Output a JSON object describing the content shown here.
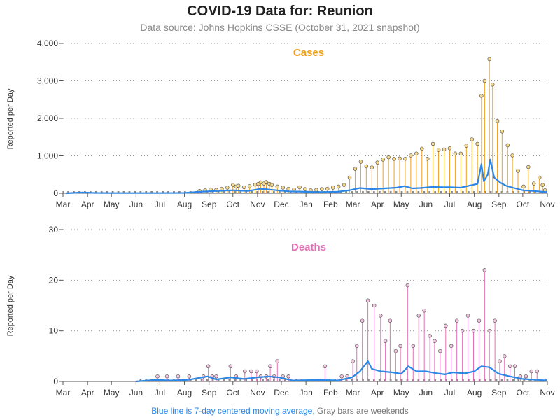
{
  "title": "COVID-19 Data for: Reunion",
  "subtitle": "Data source: Johns Hopkins CSSE (October 31, 2021 snapshot)",
  "footnote": {
    "part1": "Blue line is 7-day centered moving average,",
    "part2": "Gray bars are weekends"
  },
  "colors": {
    "cases": "#f0a020",
    "deaths": "#e46fb6",
    "moving_average": "#2b86e6",
    "weekend": "#888888",
    "grid": "#999999"
  },
  "chart_data": [
    {
      "type": "line",
      "title": "Cases",
      "ylabel": "Reported per Day",
      "ylim": [
        0,
        4000
      ],
      "yticks": [
        0,
        1000,
        2000,
        3000,
        4000
      ],
      "ytick_labels": [
        "0",
        "1,000",
        "2,000",
        "3,000",
        "4,000"
      ],
      "xlim": [
        "2020-03-01",
        "2021-11-01"
      ],
      "xtick_labels": [
        "Mar",
        "Apr",
        "May",
        "Jun",
        "Jul",
        "Aug",
        "Sep",
        "Oct",
        "Nov",
        "Dec",
        "Jan",
        "Feb",
        "Mar",
        "Apr",
        "May",
        "Jun",
        "Jul",
        "Aug",
        "Sep",
        "Oct",
        "Nov"
      ],
      "grid": "horizontal dotted",
      "series": [
        {
          "name": "Reported per Day",
          "style": "needle",
          "points": [
            [
              "2020-08-20",
              60
            ],
            [
              "2020-08-27",
              80
            ],
            [
              "2020-09-03",
              100
            ],
            [
              "2020-09-10",
              90
            ],
            [
              "2020-09-17",
              120
            ],
            [
              "2020-09-24",
              150
            ],
            [
              "2020-10-01",
              220
            ],
            [
              "2020-10-05",
              180
            ],
            [
              "2020-10-08",
              200
            ],
            [
              "2020-10-15",
              160
            ],
            [
              "2020-10-22",
              190
            ],
            [
              "2020-10-29",
              230
            ],
            [
              "2020-11-02",
              250
            ],
            [
              "2020-11-05",
              290
            ],
            [
              "2020-11-09",
              260
            ],
            [
              "2020-11-12",
              300
            ],
            [
              "2020-11-16",
              250
            ],
            [
              "2020-11-19",
              220
            ],
            [
              "2020-11-26",
              180
            ],
            [
              "2020-12-03",
              150
            ],
            [
              "2020-12-10",
              120
            ],
            [
              "2020-12-17",
              100
            ],
            [
              "2020-12-24",
              160
            ],
            [
              "2020-12-31",
              110
            ],
            [
              "2021-01-07",
              80
            ],
            [
              "2021-01-14",
              90
            ],
            [
              "2021-01-21",
              110
            ],
            [
              "2021-01-28",
              120
            ],
            [
              "2021-02-04",
              150
            ],
            [
              "2021-02-11",
              180
            ],
            [
              "2021-02-18",
              220
            ],
            [
              "2021-02-25",
              420
            ],
            [
              "2021-03-04",
              650
            ],
            [
              "2021-03-11",
              840
            ],
            [
              "2021-03-18",
              720
            ],
            [
              "2021-03-25",
              690
            ],
            [
              "2021-04-01",
              820
            ],
            [
              "2021-04-08",
              900
            ],
            [
              "2021-04-15",
              960
            ],
            [
              "2021-04-22",
              920
            ],
            [
              "2021-04-29",
              930
            ],
            [
              "2021-05-06",
              920
            ],
            [
              "2021-05-13",
              1010
            ],
            [
              "2021-05-20",
              1060
            ],
            [
              "2021-05-27",
              1190
            ],
            [
              "2021-06-03",
              920
            ],
            [
              "2021-06-10",
              1320
            ],
            [
              "2021-06-17",
              1160
            ],
            [
              "2021-06-24",
              1170
            ],
            [
              "2021-07-01",
              1200
            ],
            [
              "2021-07-08",
              1060
            ],
            [
              "2021-07-15",
              1060
            ],
            [
              "2021-07-22",
              1270
            ],
            [
              "2021-07-29",
              1440
            ],
            [
              "2021-08-05",
              1320
            ],
            [
              "2021-08-10",
              2600
            ],
            [
              "2021-08-14",
              3000
            ],
            [
              "2021-08-20",
              3580
            ],
            [
              "2021-08-24",
              2900
            ],
            [
              "2021-08-30",
              1930
            ],
            [
              "2021-09-05",
              1650
            ],
            [
              "2021-09-12",
              1280
            ],
            [
              "2021-09-18",
              1010
            ],
            [
              "2021-09-25",
              600
            ],
            [
              "2021-10-02",
              180
            ],
            [
              "2021-10-08",
              700
            ],
            [
              "2021-10-15",
              260
            ],
            [
              "2021-10-22",
              420
            ],
            [
              "2021-10-26",
              220
            ],
            [
              "2021-10-29",
              80
            ]
          ]
        },
        {
          "name": "7-day moving average",
          "style": "line",
          "points": [
            [
              "2020-03-05",
              0
            ],
            [
              "2020-03-25",
              20
            ],
            [
              "2020-04-10",
              10
            ],
            [
              "2020-05-01",
              5
            ],
            [
              "2020-06-01",
              5
            ],
            [
              "2020-07-01",
              5
            ],
            [
              "2020-08-01",
              10
            ],
            [
              "2020-08-20",
              40
            ],
            [
              "2020-09-10",
              60
            ],
            [
              "2020-10-01",
              80
            ],
            [
              "2020-10-20",
              60
            ],
            [
              "2020-11-05",
              120
            ],
            [
              "2020-11-20",
              90
            ],
            [
              "2020-12-10",
              50
            ],
            [
              "2021-01-01",
              40
            ],
            [
              "2021-01-20",
              30
            ],
            [
              "2021-02-10",
              40
            ],
            [
              "2021-02-25",
              80
            ],
            [
              "2021-03-10",
              140
            ],
            [
              "2021-03-25",
              110
            ],
            [
              "2021-04-10",
              130
            ],
            [
              "2021-04-25",
              150
            ],
            [
              "2021-05-05",
              190
            ],
            [
              "2021-05-15",
              130
            ],
            [
              "2021-05-25",
              140
            ],
            [
              "2021-06-10",
              170
            ],
            [
              "2021-06-20",
              160
            ],
            [
              "2021-07-01",
              160
            ],
            [
              "2021-07-15",
              150
            ],
            [
              "2021-07-25",
              200
            ],
            [
              "2021-08-05",
              250
            ],
            [
              "2021-08-10",
              780
            ],
            [
              "2021-08-13",
              320
            ],
            [
              "2021-08-18",
              500
            ],
            [
              "2021-08-21",
              900
            ],
            [
              "2021-08-26",
              420
            ],
            [
              "2021-09-03",
              280
            ],
            [
              "2021-09-10",
              200
            ],
            [
              "2021-09-20",
              140
            ],
            [
              "2021-10-01",
              80
            ],
            [
              "2021-10-15",
              60
            ],
            [
              "2021-10-31",
              30
            ]
          ]
        }
      ]
    },
    {
      "type": "line",
      "title": "Deaths",
      "ylabel": "Reported per Day",
      "ylim": [
        0,
        30
      ],
      "yticks": [
        0,
        10,
        20,
        30
      ],
      "ytick_labels": [
        "0",
        "10",
        "20",
        "30"
      ],
      "xlim": [
        "2020-03-01",
        "2021-11-01"
      ],
      "xtick_labels": [
        "Mar",
        "Apr",
        "May",
        "Jun",
        "Jul",
        "Aug",
        "Sep",
        "Oct",
        "Nov",
        "Dec",
        "Jan",
        "Feb",
        "Mar",
        "Apr",
        "May",
        "Jun",
        "Jul",
        "Aug",
        "Sep",
        "Oct",
        "Nov"
      ],
      "grid": "horizontal dotted",
      "series": [
        {
          "name": "Reported per Day",
          "style": "needle",
          "points": [
            [
              "2020-06-28",
              1
            ],
            [
              "2020-07-10",
              1
            ],
            [
              "2020-07-24",
              1
            ],
            [
              "2020-08-07",
              1
            ],
            [
              "2020-08-25",
              1
            ],
            [
              "2020-08-31",
              3
            ],
            [
              "2020-09-05",
              1
            ],
            [
              "2020-09-10",
              1
            ],
            [
              "2020-09-28",
              3
            ],
            [
              "2020-10-05",
              1
            ],
            [
              "2020-10-16",
              2
            ],
            [
              "2020-10-24",
              2
            ],
            [
              "2020-10-31",
              2
            ],
            [
              "2020-11-05",
              1
            ],
            [
              "2020-11-12",
              1
            ],
            [
              "2020-11-17",
              3
            ],
            [
              "2020-11-22",
              1
            ],
            [
              "2020-11-26",
              4
            ],
            [
              "2020-12-03",
              1
            ],
            [
              "2020-12-10",
              1
            ],
            [
              "2021-01-25",
              3
            ],
            [
              "2021-02-15",
              1
            ],
            [
              "2021-02-22",
              1
            ],
            [
              "2021-03-01",
              4
            ],
            [
              "2021-03-06",
              7
            ],
            [
              "2021-03-13",
              12
            ],
            [
              "2021-03-20",
              16
            ],
            [
              "2021-03-28",
              15
            ],
            [
              "2021-04-05",
              13
            ],
            [
              "2021-04-11",
              8
            ],
            [
              "2021-04-17",
              12
            ],
            [
              "2021-04-24",
              6
            ],
            [
              "2021-04-30",
              7
            ],
            [
              "2021-05-09",
              19
            ],
            [
              "2021-05-16",
              7
            ],
            [
              "2021-05-23",
              13
            ],
            [
              "2021-05-30",
              14
            ],
            [
              "2021-06-06",
              9
            ],
            [
              "2021-06-12",
              8
            ],
            [
              "2021-06-19",
              6
            ],
            [
              "2021-06-26",
              11
            ],
            [
              "2021-07-03",
              7
            ],
            [
              "2021-07-10",
              12
            ],
            [
              "2021-07-17",
              10
            ],
            [
              "2021-07-24",
              13
            ],
            [
              "2021-07-31",
              10
            ],
            [
              "2021-08-07",
              12
            ],
            [
              "2021-08-14",
              22
            ],
            [
              "2021-08-20",
              10
            ],
            [
              "2021-08-27",
              12
            ],
            [
              "2021-09-02",
              4
            ],
            [
              "2021-09-08",
              5
            ],
            [
              "2021-09-15",
              3
            ],
            [
              "2021-09-21",
              3
            ],
            [
              "2021-09-28",
              1
            ],
            [
              "2021-10-05",
              1
            ],
            [
              "2021-10-12",
              2
            ],
            [
              "2021-10-19",
              2
            ]
          ]
        },
        {
          "name": "7-day moving average",
          "style": "line",
          "points": [
            [
              "2020-06-01",
              0
            ],
            [
              "2020-06-25",
              0.3
            ],
            [
              "2020-07-15",
              0.2
            ],
            [
              "2020-08-05",
              0.3
            ],
            [
              "2020-08-30",
              1
            ],
            [
              "2020-09-10",
              0.4
            ],
            [
              "2020-09-28",
              0.8
            ],
            [
              "2020-10-15",
              0.5
            ],
            [
              "2020-11-01",
              0.8
            ],
            [
              "2020-11-15",
              1
            ],
            [
              "2020-11-28",
              0.8
            ],
            [
              "2020-12-15",
              0.2
            ],
            [
              "2021-01-20",
              0.3
            ],
            [
              "2021-02-10",
              0.2
            ],
            [
              "2021-02-28",
              0.8
            ],
            [
              "2021-03-10",
              2
            ],
            [
              "2021-03-20",
              4
            ],
            [
              "2021-03-25",
              2.5
            ],
            [
              "2021-04-05",
              2
            ],
            [
              "2021-04-20",
              1.8
            ],
            [
              "2021-05-01",
              1.5
            ],
            [
              "2021-05-10",
              3
            ],
            [
              "2021-05-20",
              2
            ],
            [
              "2021-06-01",
              2
            ],
            [
              "2021-06-15",
              1.6
            ],
            [
              "2021-06-25",
              1.4
            ],
            [
              "2021-07-05",
              1.8
            ],
            [
              "2021-07-20",
              1.6
            ],
            [
              "2021-08-01",
              2
            ],
            [
              "2021-08-10",
              3
            ],
            [
              "2021-08-20",
              2.8
            ],
            [
              "2021-09-01",
              1.5
            ],
            [
              "2021-09-15",
              1
            ],
            [
              "2021-10-01",
              0.5
            ],
            [
              "2021-10-20",
              0.3
            ],
            [
              "2021-10-31",
              0.2
            ]
          ]
        },
        {
          "name": "Gray bars are weekends",
          "style": "weekend-band",
          "range": [
            "2020-06-01",
            "2021-11-01"
          ]
        }
      ]
    }
  ]
}
